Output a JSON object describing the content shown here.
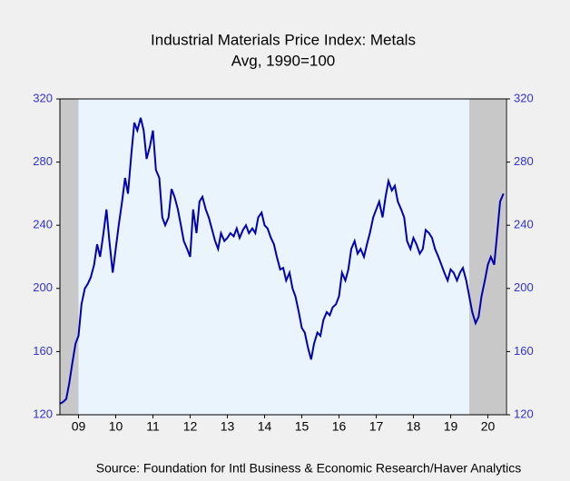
{
  "chart_data": {
    "type": "line",
    "title": "Industrial Materials Price Index: Metals",
    "subtitle": "Avg, 1990=100",
    "source": "Source:  Foundation for Intl Business & Economic Research/Haver Analytics",
    "xlim": [
      2009,
      2021
    ],
    "xticks": [
      {
        "value": 2009.5,
        "label": "09"
      },
      {
        "value": 2010.5,
        "label": "10"
      },
      {
        "value": 2011.5,
        "label": "11"
      },
      {
        "value": 2012.5,
        "label": "12"
      },
      {
        "value": 2013.5,
        "label": "13"
      },
      {
        "value": 2014.5,
        "label": "14"
      },
      {
        "value": 2015.5,
        "label": "15"
      },
      {
        "value": 2016.5,
        "label": "16"
      },
      {
        "value": 2017.5,
        "label": "17"
      },
      {
        "value": 2018.5,
        "label": "18"
      },
      {
        "value": 2019.5,
        "label": "19"
      },
      {
        "value": 2020.5,
        "label": "20"
      }
    ],
    "ylim": [
      120,
      320
    ],
    "yticks": [
      120,
      160,
      200,
      240,
      280,
      320
    ],
    "y2lim": [
      120,
      320
    ],
    "y2ticks": [
      120,
      160,
      200,
      240,
      280,
      320
    ],
    "shaded": [
      [
        2009,
        2009.5
      ],
      [
        2020,
        2020.97
      ]
    ],
    "x": [
      2009.0,
      2009.08,
      2009.17,
      2009.25,
      2009.33,
      2009.42,
      2009.5,
      2009.58,
      2009.67,
      2009.75,
      2009.83,
      2009.92,
      2010.0,
      2010.08,
      2010.17,
      2010.25,
      2010.33,
      2010.42,
      2010.5,
      2010.58,
      2010.67,
      2010.75,
      2010.83,
      2010.92,
      2011.0,
      2011.08,
      2011.17,
      2011.25,
      2011.33,
      2011.42,
      2011.5,
      2011.58,
      2011.67,
      2011.75,
      2011.83,
      2011.92,
      2012.0,
      2012.08,
      2012.17,
      2012.25,
      2012.33,
      2012.42,
      2012.5,
      2012.58,
      2012.67,
      2012.75,
      2012.83,
      2012.92,
      2013.0,
      2013.08,
      2013.17,
      2013.25,
      2013.33,
      2013.42,
      2013.5,
      2013.58,
      2013.67,
      2013.75,
      2013.83,
      2013.92,
      2014.0,
      2014.08,
      2014.17,
      2014.25,
      2014.33,
      2014.42,
      2014.5,
      2014.58,
      2014.67,
      2014.75,
      2014.83,
      2014.92,
      2015.0,
      2015.08,
      2015.17,
      2015.25,
      2015.33,
      2015.42,
      2015.5,
      2015.58,
      2015.67,
      2015.75,
      2015.83,
      2015.92,
      2016.0,
      2016.08,
      2016.17,
      2016.25,
      2016.33,
      2016.42,
      2016.5,
      2016.58,
      2016.67,
      2016.75,
      2016.83,
      2016.92,
      2017.0,
      2017.08,
      2017.17,
      2017.25,
      2017.33,
      2017.42,
      2017.5,
      2017.58,
      2017.67,
      2017.75,
      2017.83,
      2017.92,
      2018.0,
      2018.08,
      2018.17,
      2018.25,
      2018.33,
      2018.42,
      2018.5,
      2018.58,
      2018.67,
      2018.75,
      2018.83,
      2018.92,
      2019.0,
      2019.08,
      2019.17,
      2019.25,
      2019.33,
      2019.42,
      2019.5,
      2019.58,
      2019.67,
      2019.75,
      2019.83,
      2019.92,
      2020.0,
      2020.08,
      2020.17,
      2020.25,
      2020.33,
      2020.42,
      2020.5,
      2020.58,
      2020.67,
      2020.75,
      2020.83,
      2020.92
    ],
    "series": [
      {
        "color": "#0000b0",
        "values": [
          127,
          128,
          130,
          140,
          152,
          165,
          170,
          190,
          200,
          203,
          207,
          215,
          228,
          220,
          235,
          250,
          230,
          210,
          225,
          240,
          255,
          270,
          260,
          285,
          305,
          300,
          308,
          300,
          282,
          290,
          300,
          275,
          270,
          245,
          240,
          245,
          263,
          258,
          250,
          240,
          230,
          225,
          220,
          250,
          235,
          255,
          258,
          250,
          245,
          238,
          230,
          225,
          235,
          230,
          232,
          235,
          233,
          238,
          232,
          237,
          240,
          235,
          238,
          235,
          245,
          248,
          240,
          238,
          232,
          228,
          220,
          212,
          213,
          205,
          210,
          200,
          195,
          185,
          175,
          172,
          162,
          155,
          165,
          172,
          170,
          180,
          185,
          183,
          188,
          190,
          195,
          210,
          205,
          212,
          225,
          230,
          222,
          225,
          220,
          228,
          235,
          245,
          250,
          255,
          245,
          258,
          268,
          262,
          265,
          255,
          250,
          245,
          230,
          225,
          232,
          228,
          222,
          225,
          237,
          235,
          232,
          225,
          220,
          215,
          210,
          205,
          212,
          210,
          205,
          210,
          213,
          205,
          195,
          185,
          178,
          182,
          195,
          205,
          215,
          220,
          215,
          235,
          255,
          260
        ]
      }
    ]
  }
}
